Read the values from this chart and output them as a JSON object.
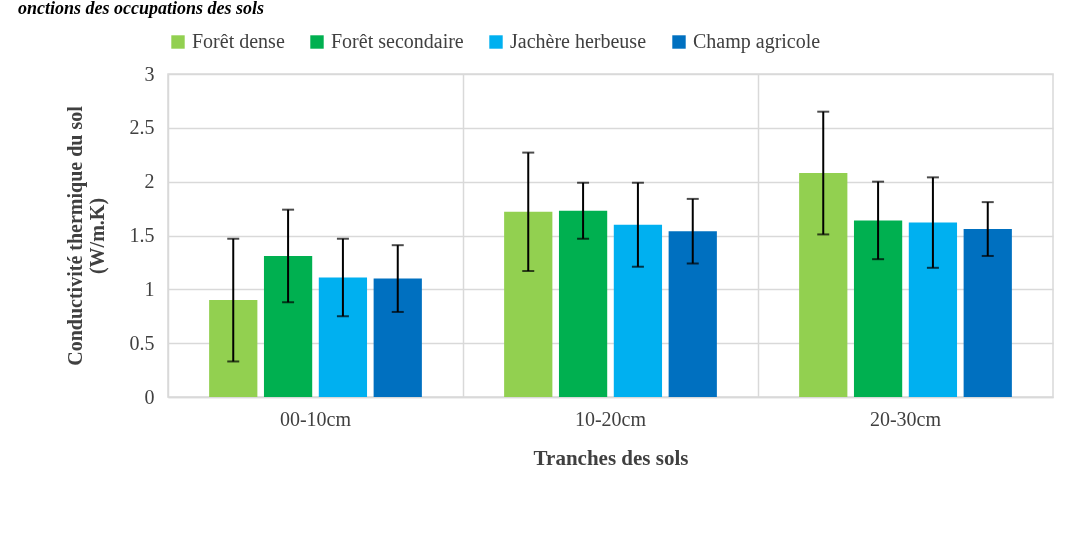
{
  "chart_data": {
    "type": "bar",
    "title": "onctions des occupations des sols",
    "categories": [
      "00-10cm",
      "10-20cm",
      "20-30cm"
    ],
    "xlabel": "Tranches des sols",
    "ylabel": "Conductivité thermique du sol\n(W/m.K)",
    "ylim": [
      0,
      3
    ],
    "yticks": [
      0,
      0.5,
      1,
      1.5,
      2,
      2.5,
      3
    ],
    "grid": true,
    "legend": "top",
    "series": [
      {
        "name": "Forêt dense",
        "color": "#92d050",
        "values": [
          0.9,
          1.72,
          2.08
        ],
        "errors": [
          [
            0.33,
            1.47
          ],
          [
            1.17,
            2.27
          ],
          [
            1.51,
            2.65
          ]
        ]
      },
      {
        "name": "Forêt secondaire",
        "color": "#00b050",
        "values": [
          1.31,
          1.73,
          1.64
        ],
        "errors": [
          [
            0.88,
            1.74
          ],
          [
            1.47,
            1.99
          ],
          [
            1.28,
            2.0
          ]
        ]
      },
      {
        "name": "Jachère herbeuse",
        "color": "#00b0f0",
        "values": [
          1.11,
          1.6,
          1.62
        ],
        "errors": [
          [
            0.75,
            1.47
          ],
          [
            1.21,
            1.99
          ],
          [
            1.2,
            2.04
          ]
        ]
      },
      {
        "name": "Champ agricole",
        "color": "#0070c0",
        "values": [
          1.1,
          1.54,
          1.56
        ],
        "errors": [
          [
            0.79,
            1.41
          ],
          [
            1.24,
            1.84
          ],
          [
            1.31,
            1.81
          ]
        ]
      }
    ]
  }
}
